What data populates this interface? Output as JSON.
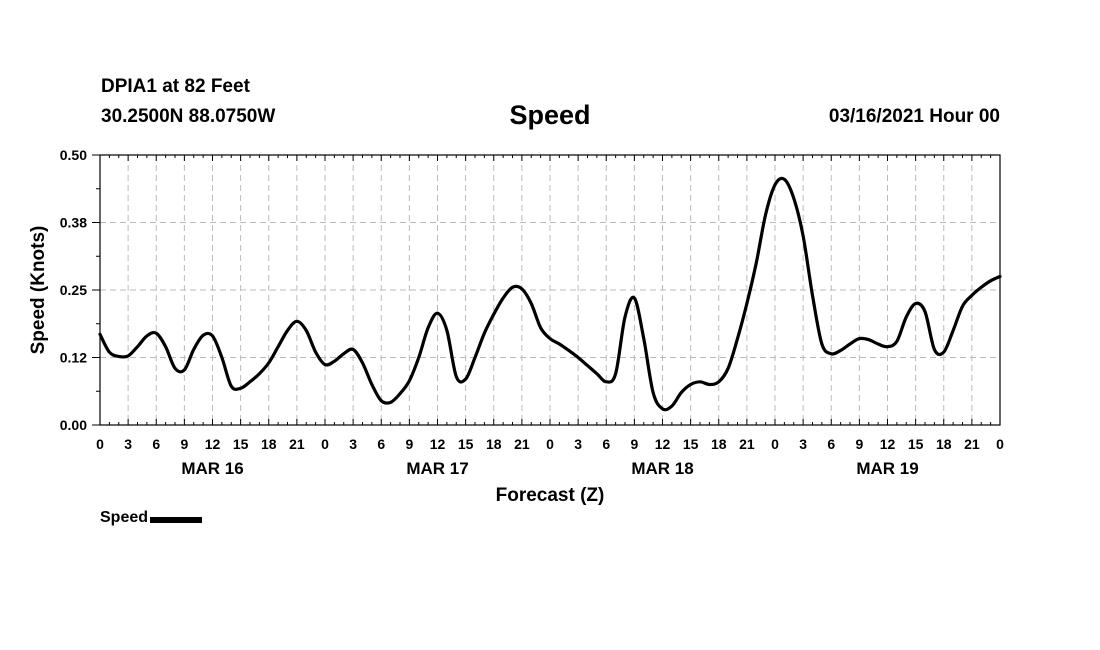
{
  "header": {
    "station": "DPIA1 at 82 Feet",
    "coords": "30.2500N 88.0750W",
    "title": "Speed",
    "datetime": "03/16/2021 Hour 00"
  },
  "legend": {
    "label": "Speed"
  },
  "colors": {
    "line": "#000000",
    "grid": "#bbbbbb",
    "axis": "#000000"
  },
  "chart_data": {
    "type": "line",
    "title": "Speed",
    "xlabel": "Forecast (Z)",
    "ylabel": "Speed (Knots)",
    "xlim": [
      0,
      96
    ],
    "ylim": [
      0,
      0.5
    ],
    "y_ticks": [
      "0.00",
      "0.12",
      "0.25",
      "0.38",
      "0.50"
    ],
    "y_tick_values": [
      0,
      0.125,
      0.25,
      0.375,
      0.5
    ],
    "x_tick_labels": [
      "0",
      "3",
      "6",
      "9",
      "12",
      "15",
      "18",
      "21",
      "0",
      "3",
      "6",
      "9",
      "12",
      "15",
      "18",
      "21",
      "0",
      "3",
      "6",
      "9",
      "12",
      "15",
      "18",
      "21",
      "0",
      "3",
      "6",
      "9",
      "12",
      "15",
      "18",
      "21",
      "0"
    ],
    "day_labels": [
      {
        "label": "MAR 16",
        "hour": 12
      },
      {
        "label": "MAR 17",
        "hour": 36
      },
      {
        "label": "MAR 18",
        "hour": 60
      },
      {
        "label": "MAR 19",
        "hour": 84
      }
    ],
    "grid": true,
    "legend_position": "bottom-left",
    "series": [
      {
        "name": "Speed",
        "x": [
          0,
          1,
          2,
          3,
          4,
          5,
          6,
          7,
          8,
          9,
          10,
          11,
          12,
          13,
          14,
          15,
          16,
          17,
          18,
          19,
          20,
          21,
          22,
          23,
          24,
          25,
          26,
          27,
          28,
          29,
          30,
          31,
          32,
          33,
          34,
          35,
          36,
          37,
          38,
          39,
          40,
          41,
          42,
          43,
          44,
          45,
          46,
          47,
          48,
          49,
          50,
          51,
          52,
          53,
          54,
          55,
          56,
          57,
          58,
          59,
          60,
          61,
          62,
          63,
          64,
          65,
          66,
          67,
          68,
          69,
          70,
          71,
          72,
          73,
          74,
          75,
          76,
          77,
          78,
          79,
          80,
          81,
          82,
          83,
          84,
          85,
          86,
          87,
          88,
          89,
          90,
          91,
          92,
          93,
          94,
          95,
          96
        ],
        "values": [
          0.168,
          0.135,
          0.127,
          0.128,
          0.145,
          0.165,
          0.17,
          0.145,
          0.105,
          0.102,
          0.14,
          0.166,
          0.165,
          0.125,
          0.072,
          0.068,
          0.08,
          0.095,
          0.115,
          0.145,
          0.175,
          0.192,
          0.175,
          0.135,
          0.112,
          0.118,
          0.132,
          0.14,
          0.115,
          0.075,
          0.045,
          0.042,
          0.058,
          0.082,
          0.125,
          0.18,
          0.207,
          0.175,
          0.09,
          0.085,
          0.125,
          0.17,
          0.205,
          0.235,
          0.255,
          0.252,
          0.225,
          0.18,
          0.16,
          0.15,
          0.138,
          0.125,
          0.11,
          0.095,
          0.08,
          0.095,
          0.2,
          0.235,
          0.16,
          0.06,
          0.03,
          0.035,
          0.06,
          0.075,
          0.08,
          0.075,
          0.08,
          0.105,
          0.16,
          0.225,
          0.3,
          0.39,
          0.445,
          0.455,
          0.42,
          0.35,
          0.24,
          0.15,
          0.132,
          0.138,
          0.15,
          0.16,
          0.158,
          0.15,
          0.145,
          0.155,
          0.2,
          0.225,
          0.21,
          0.14,
          0.135,
          0.175,
          0.22,
          0.24,
          0.255,
          0.267,
          0.275
        ]
      }
    ]
  }
}
